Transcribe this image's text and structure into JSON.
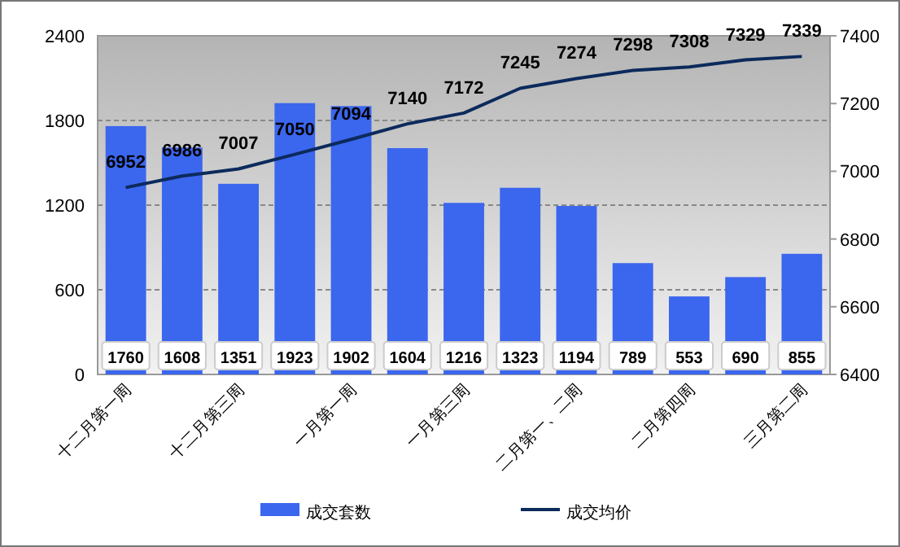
{
  "chart_data": {
    "type": "bar",
    "categories": [
      "十二月第一周",
      null,
      "十二月第三周",
      null,
      "一月第一周",
      null,
      "一月第三周",
      null,
      "二月第一、二周",
      null,
      "二月第四周",
      null,
      "三月第二周"
    ],
    "series": [
      {
        "name": "成交套数",
        "color": "#3b66ee",
        "values": [
          1760,
          1608,
          1351,
          1923,
          1902,
          1604,
          1216,
          1323,
          1194,
          789,
          553,
          690,
          855
        ]
      },
      {
        "name": "成交均价",
        "type": "line",
        "axis": "y2",
        "color": "#0c2a5c",
        "values": [
          6952,
          6986,
          7007,
          7050,
          7094,
          7140,
          7172,
          7245,
          7274,
          7298,
          7308,
          7329,
          7339
        ]
      }
    ],
    "ylim": [
      0,
      2400
    ],
    "yticks": [
      0,
      600,
      1200,
      1800,
      2400
    ],
    "y2lim": [
      6400,
      7400
    ],
    "y2ticks": [
      6400,
      6600,
      6800,
      7000,
      7200,
      7400
    ],
    "grid": "y",
    "legend": "bottom",
    "data_labels": true,
    "marker": "none",
    "line_style": "solid"
  }
}
